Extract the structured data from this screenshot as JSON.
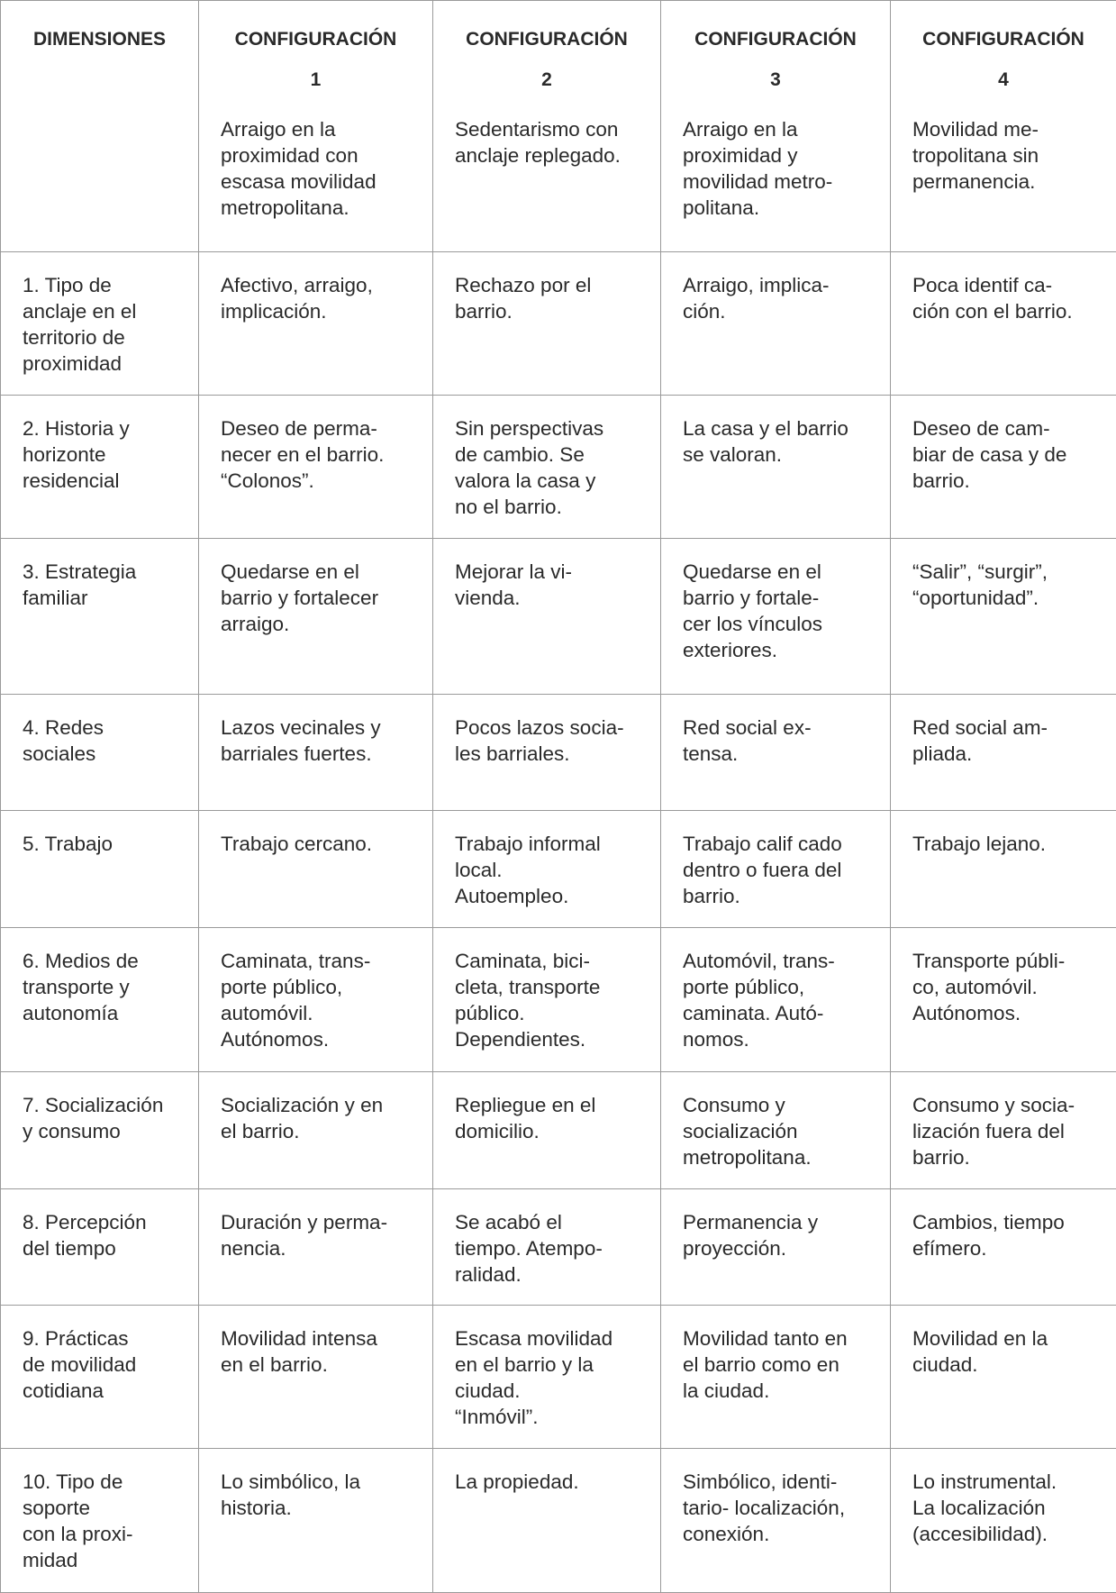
{
  "table": {
    "header": [
      "DIMENSIONES",
      "CONFIGURACIÓN\n1",
      "CONFIGURACIÓN\n2",
      "CONFIGURACIÓN\n3",
      "CONFIGURACIÓN\n4"
    ],
    "descriptions": [
      "",
      "Arraigo en la\nproximidad con\nescasa movilidad\nmetropolitana.",
      "Sedentarismo con\nanclaje replegado.",
      "Arraigo en la\nproximidad y\nmovilidad metro-\npolitana.",
      "Movilidad me-\ntropolitana sin\npermanencia."
    ],
    "rows": [
      [
        "1. Tipo de\nanclaje en el\nterritorio de\nproximidad",
        "Afectivo, arraigo,\nimplicación.",
        "Rechazo por el\nbarrio.",
        "Arraigo, implica-\nción.",
        "Poca identif ca-\nción con el barrio."
      ],
      [
        "2. Historia y\nhorizonte\nresidencial",
        "Deseo de perma-\nnecer en el barrio.\n“Colonos”.",
        "Sin perspectivas\nde cambio. Se\nvalora la casa y\nno el barrio.",
        "La casa y el barrio\nse valoran.",
        "Deseo de cam-\nbiar de casa y de\nbarrio."
      ],
      [
        "3. Estrategia\nfamiliar",
        "Quedarse en el\nbarrio y fortalecer\narraigo.",
        "Mejorar la vi-\nvienda.",
        "Quedarse en el\nbarrio y fortale-\ncer los vínculos\nexteriores.",
        "“Salir”, “surgir”,\n“oportunidad”."
      ],
      [
        "4. Redes\nsociales",
        "Lazos vecinales y\nbarriales fuertes.",
        "Pocos lazos socia-\nles barriales.",
        "Red social ex-\ntensa.",
        "Red social am-\npliada."
      ],
      [
        "5. Trabajo",
        "Trabajo cercano.",
        "Trabajo informal\nlocal.\nAutoempleo.",
        "Trabajo calif cado\ndentro o fuera del\nbarrio.",
        "Trabajo lejano."
      ],
      [
        "6. Medios de\ntransporte y\nautonomía",
        "Caminata, trans-\nporte público,\nautomóvil.\nAutónomos.",
        "Caminata, bici-\ncleta, transporte\npúblico.\nDependientes.",
        "Automóvil, trans-\nporte público,\ncaminata. Autó-\nnomos.",
        "Transporte públi-\nco, automóvil.\nAutónomos."
      ],
      [
        "7. Socialización\ny consumo",
        "Socialización y en\nel barrio.",
        "Repliegue en el\ndomicilio.",
        "Consumo y\nsocialización\nmetropolitana.",
        "Consumo y socia-\nlización fuera del\nbarrio."
      ],
      [
        "8. Percepción\ndel tiempo",
        "Duración y perma-\nnencia.",
        "Se acabó el\ntiempo. Atempo-\nralidad.",
        "Permanencia y\nproyección.",
        "Cambios, tiempo\nefímero."
      ],
      [
        "9. Prácticas\nde movilidad\ncotidiana",
        "Movilidad intensa\nen el barrio.",
        "Escasa movilidad\nen el barrio y la\nciudad.\n“Inmóvil”.",
        "Movilidad tanto en\nel barrio como en\nla ciudad.",
        "Movilidad en la\nciudad."
      ],
      [
        "10. Tipo de\nsoporte\n con la proxi-\nmidad",
        "Lo simbólico, la\nhistoria.",
        "La propiedad.",
        "Simbólico, identi-\ntario- localización,\nconexión.",
        "Lo instrumental.\nLa localización\n(accesibilidad)."
      ]
    ]
  }
}
